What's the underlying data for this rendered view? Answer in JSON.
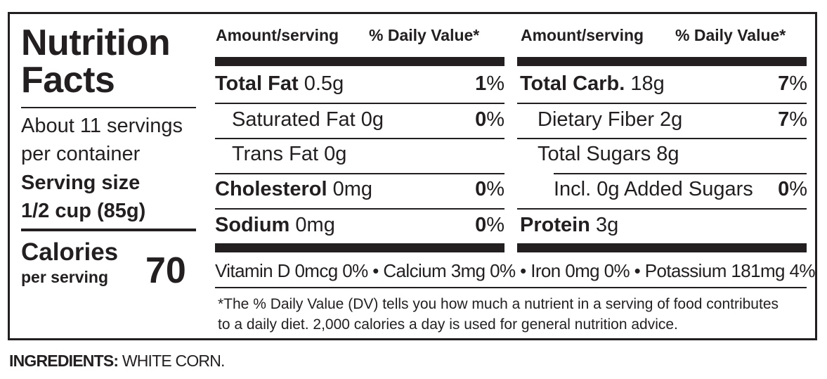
{
  "title_line1": "Nutrition",
  "title_line2": "Facts",
  "servings_line1": "About 11 servings",
  "servings_line2": "per container",
  "serving_size_label": "Serving size",
  "serving_size_value": "1/2 cup (85g)",
  "calories_label": "Calories",
  "calories_sub": "per serving",
  "calories_value": "70",
  "left_header": {
    "amount": "Amount/serving",
    "dv": "% Daily Value*"
  },
  "right_header": {
    "amount": "Amount/serving",
    "dv": "% Daily Value*"
  },
  "left_rows": [
    {
      "name": "Total Fat",
      "amount": "0.5g",
      "pct_num": "1",
      "pct_sign": "%"
    },
    {
      "name": "Saturated Fat 0g",
      "amount": "",
      "pct_num": "0",
      "pct_sign": "%"
    },
    {
      "name": "Trans Fat 0g",
      "amount": "",
      "pct_num": "",
      "pct_sign": ""
    },
    {
      "name": "Cholesterol",
      "amount": "0mg",
      "pct_num": "0",
      "pct_sign": "%"
    },
    {
      "name": "Sodium",
      "amount": "0mg",
      "pct_num": "0",
      "pct_sign": "%"
    }
  ],
  "right_rows": [
    {
      "name": "Total Carb.",
      "amount": "18g",
      "pct_num": "7",
      "pct_sign": "%"
    },
    {
      "name": "Dietary Fiber 2g",
      "amount": "",
      "pct_num": "7",
      "pct_sign": "%"
    },
    {
      "name": "Total Sugars 8g",
      "amount": "",
      "pct_num": "",
      "pct_sign": ""
    },
    {
      "name": "Incl. 0g Added Sugars",
      "amount": "",
      "pct_num": "0",
      "pct_sign": "%"
    },
    {
      "name": "Protein",
      "amount": "3g",
      "pct_num": "",
      "pct_sign": ""
    }
  ],
  "micronutrients": "Vitamin D 0mcg 0% • Calcium 3mg 0% • Iron 0mg 0% • Potassium 181mg 4%",
  "footnote_line1": "*The % Daily Value (DV) tells you how much a nutrient in a serving of food contributes",
  "footnote_line2": "to a daily diet. 2,000 calories a day is used for general nutrition advice.",
  "ingredients_label": "INGREDIENTS:",
  "ingredients_value": "WHITE CORN."
}
